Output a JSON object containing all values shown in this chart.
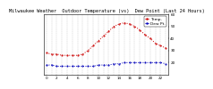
{
  "title_line1": "Milwaukee Weather  Outdoor Temperature (vs)  Dew Point (Last 24 Hours)",
  "temp_values": [
    28,
    27,
    27,
    26,
    26,
    26,
    26,
    27,
    30,
    34,
    38,
    42,
    46,
    50,
    52,
    53,
    52,
    50,
    47,
    43,
    40,
    36,
    34,
    32
  ],
  "dew_values": [
    18,
    18,
    17,
    17,
    17,
    17,
    17,
    17,
    17,
    17,
    18,
    18,
    18,
    19,
    19,
    20,
    20,
    20,
    20,
    20,
    20,
    20,
    20,
    19
  ],
  "temp_color": "#cc0000",
  "dew_color": "#0000bb",
  "black_color": "#000000",
  "ylim_min": 10,
  "ylim_max": 60,
  "ytick_vals": [
    20,
    30,
    40,
    50,
    60
  ],
  "ytick_labels": [
    "20",
    "30",
    "40",
    "50",
    "60"
  ],
  "background_color": "#ffffff",
  "grid_color": "#888888",
  "title_fontsize": 3.8,
  "tick_fontsize": 3.0,
  "legend_fontsize": 3.2,
  "legend_temp": "Temp.",
  "legend_dew": "Dew Pt.",
  "x_tick_every": 2,
  "n_points": 24
}
